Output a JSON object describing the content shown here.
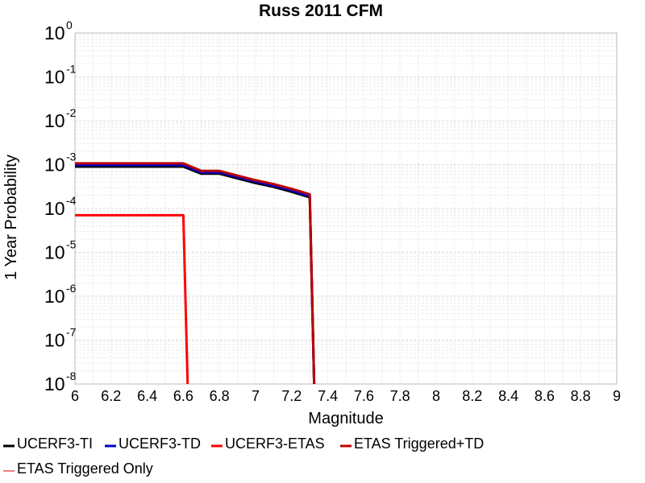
{
  "chart_data": {
    "type": "line",
    "title": "Russ 2011 CFM",
    "xlabel": "Magnitude",
    "ylabel": "1 Year Probability",
    "xlim": [
      6,
      9
    ],
    "ylim": [
      1e-08,
      1
    ],
    "yscale": "log",
    "grid": true,
    "legend_position": "bottom",
    "x_ticks": [
      "6",
      "6.2",
      "6.4",
      "6.6",
      "6.8",
      "7",
      "7.2",
      "7.4",
      "7.6",
      "7.8",
      "8",
      "8.2",
      "8.4",
      "8.6",
      "8.8",
      "9"
    ],
    "y_ticks": [
      {
        "base": "10",
        "exp": "0"
      },
      {
        "base": "10",
        "exp": "-1"
      },
      {
        "base": "10",
        "exp": "-2"
      },
      {
        "base": "10",
        "exp": "-3"
      },
      {
        "base": "10",
        "exp": "-4"
      },
      {
        "base": "10",
        "exp": "-5"
      },
      {
        "base": "10",
        "exp": "-6"
      },
      {
        "base": "10",
        "exp": "-7"
      },
      {
        "base": "10",
        "exp": "-8"
      }
    ],
    "series": [
      {
        "name": "UCERF3-TI",
        "color": "#000000",
        "x": [
          6.0,
          6.6,
          6.7,
          6.8,
          7.0,
          7.1,
          7.2,
          7.3,
          7.33
        ],
        "y": [
          0.0009,
          0.0009,
          0.00062,
          0.00062,
          0.00038,
          0.00031,
          0.00024,
          0.00018,
          1e-09
        ]
      },
      {
        "name": "UCERF3-TD",
        "color": "#0000cc",
        "x": [
          6.0,
          6.6,
          6.7,
          6.8,
          7.0,
          7.1,
          7.2,
          7.3,
          7.33
        ],
        "y": [
          0.00098,
          0.00098,
          0.00066,
          0.00066,
          0.00041,
          0.00033,
          0.00026,
          0.00019,
          1e-09
        ]
      },
      {
        "name": "UCERF3-ETAS",
        "color": "#ff0000",
        "x": [
          6.0,
          6.6,
          6.63
        ],
        "y": [
          7e-05,
          7e-05,
          1e-09
        ]
      },
      {
        "name": "ETAS Triggered+TD",
        "color": "#bb0000",
        "x": [
          6.0,
          6.6,
          6.7,
          6.8,
          7.0,
          7.1,
          7.2,
          7.3,
          7.33
        ],
        "y": [
          0.00107,
          0.00107,
          0.00072,
          0.00072,
          0.00044,
          0.00036,
          0.00028,
          0.00021,
          1e-09
        ]
      },
      {
        "name": "ETAS Triggered Only",
        "color": "#f08080",
        "x": [],
        "y": []
      }
    ]
  }
}
